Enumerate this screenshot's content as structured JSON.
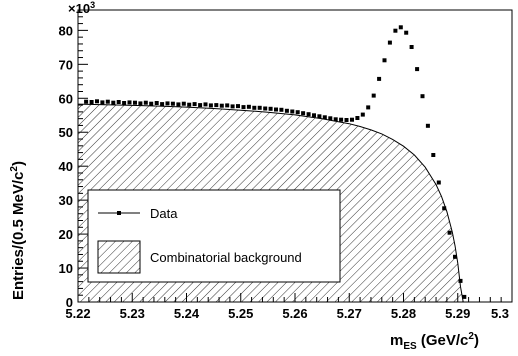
{
  "chart_data": {
    "type": "area",
    "xlabel": "m_ES (GeV/c^2)",
    "xlabel_parts": {
      "main": "m",
      "sub": "ES",
      "unit_open": " (GeV/c",
      "unit_sup": "2",
      "unit_close": ")"
    },
    "ylabel": "Entries/(0.5 MeV/c^2)",
    "ylabel_parts": {
      "main": "Entries/(0.5 MeV/c",
      "sup": "2",
      "close": ")"
    },
    "y_multiplier": "×10",
    "y_multiplier_exp": "3",
    "xlim": [
      5.22,
      5.3
    ],
    "ylim": [
      0,
      86
    ],
    "x_ticks": [
      "5.22",
      "5.23",
      "5.24",
      "5.25",
      "5.26",
      "5.27",
      "5.28",
      "5.29",
      "5.3"
    ],
    "x_tick_values": [
      5.22,
      5.23,
      5.24,
      5.25,
      5.26,
      5.27,
      5.28,
      5.29,
      5.3
    ],
    "y_ticks": [
      "0",
      "10",
      "20",
      "30",
      "40",
      "50",
      "60",
      "70",
      "80"
    ],
    "y_tick_values": [
      0,
      10,
      20,
      30,
      40,
      50,
      60,
      70,
      80
    ],
    "legend_position": "lower-left",
    "series": [
      {
        "name": "Data",
        "style": "markers",
        "color": "#000000",
        "points": [
          [
            5.2215,
            59.0
          ],
          [
            5.2225,
            58.9
          ],
          [
            5.2235,
            59.1
          ],
          [
            5.2245,
            58.8
          ],
          [
            5.2255,
            59.0
          ],
          [
            5.2265,
            58.7
          ],
          [
            5.2275,
            58.9
          ],
          [
            5.2285,
            58.6
          ],
          [
            5.2295,
            58.8
          ],
          [
            5.2305,
            58.7
          ],
          [
            5.2315,
            58.5
          ],
          [
            5.2325,
            58.7
          ],
          [
            5.2335,
            58.4
          ],
          [
            5.2345,
            58.6
          ],
          [
            5.2355,
            58.3
          ],
          [
            5.2365,
            58.5
          ],
          [
            5.2375,
            58.4
          ],
          [
            5.2385,
            58.2
          ],
          [
            5.2395,
            58.4
          ],
          [
            5.2405,
            58.1
          ],
          [
            5.2415,
            58.3
          ],
          [
            5.2425,
            58.0
          ],
          [
            5.2435,
            58.2
          ],
          [
            5.2445,
            57.9
          ],
          [
            5.2455,
            58.0
          ],
          [
            5.2465,
            57.8
          ],
          [
            5.2475,
            57.9
          ],
          [
            5.2485,
            57.6
          ],
          [
            5.2495,
            57.7
          ],
          [
            5.2505,
            57.4
          ],
          [
            5.2515,
            57.5
          ],
          [
            5.2525,
            57.2
          ],
          [
            5.2535,
            57.2
          ],
          [
            5.2545,
            57.0
          ],
          [
            5.2555,
            56.9
          ],
          [
            5.2565,
            56.7
          ],
          [
            5.2575,
            56.6
          ],
          [
            5.2585,
            56.3
          ],
          [
            5.2595,
            56.1
          ],
          [
            5.2605,
            55.9
          ],
          [
            5.2615,
            55.6
          ],
          [
            5.2625,
            55.3
          ],
          [
            5.2635,
            55.0
          ],
          [
            5.2645,
            54.7
          ],
          [
            5.2655,
            54.4
          ],
          [
            5.2665,
            54.1
          ],
          [
            5.2675,
            53.8
          ],
          [
            5.2685,
            53.7
          ],
          [
            5.2695,
            53.6
          ],
          [
            5.2705,
            53.7
          ],
          [
            5.2715,
            54.2
          ],
          [
            5.2725,
            55.2
          ],
          [
            5.2735,
            57.3
          ],
          [
            5.2745,
            60.8
          ],
          [
            5.2755,
            65.7
          ],
          [
            5.2765,
            71.2
          ],
          [
            5.2775,
            76.4
          ],
          [
            5.2785,
            79.9
          ],
          [
            5.2795,
            80.9
          ],
          [
            5.2805,
            79.3
          ],
          [
            5.2815,
            75.1
          ],
          [
            5.2825,
            68.6
          ],
          [
            5.2835,
            60.6
          ],
          [
            5.2845,
            51.9
          ],
          [
            5.2855,
            43.3
          ],
          [
            5.2865,
            35.2
          ],
          [
            5.2875,
            27.6
          ],
          [
            5.2885,
            20.4
          ],
          [
            5.2895,
            13.3
          ],
          [
            5.2905,
            6.2
          ],
          [
            5.2912,
            1.5
          ]
        ]
      },
      {
        "name": "Combinatorial background",
        "style": "hatched-area",
        "color": "#000000",
        "points": [
          [
            5.22,
            58.3
          ],
          [
            5.225,
            58.1
          ],
          [
            5.23,
            57.9
          ],
          [
            5.235,
            57.7
          ],
          [
            5.24,
            57.4
          ],
          [
            5.245,
            57.0
          ],
          [
            5.25,
            56.5
          ],
          [
            5.255,
            55.9
          ],
          [
            5.26,
            55.1
          ],
          [
            5.265,
            54.0
          ],
          [
            5.27,
            52.5
          ],
          [
            5.272,
            51.7
          ],
          [
            5.274,
            50.7
          ],
          [
            5.276,
            49.5
          ],
          [
            5.278,
            47.9
          ],
          [
            5.28,
            45.9
          ],
          [
            5.282,
            43.3
          ],
          [
            5.284,
            39.7
          ],
          [
            5.286,
            34.6
          ],
          [
            5.287,
            31.1
          ],
          [
            5.288,
            26.6
          ],
          [
            5.289,
            20.6
          ],
          [
            5.2895,
            16.6
          ],
          [
            5.29,
            11.4
          ],
          [
            5.2905,
            4.5
          ],
          [
            5.291,
            0.0
          ]
        ]
      }
    ]
  }
}
